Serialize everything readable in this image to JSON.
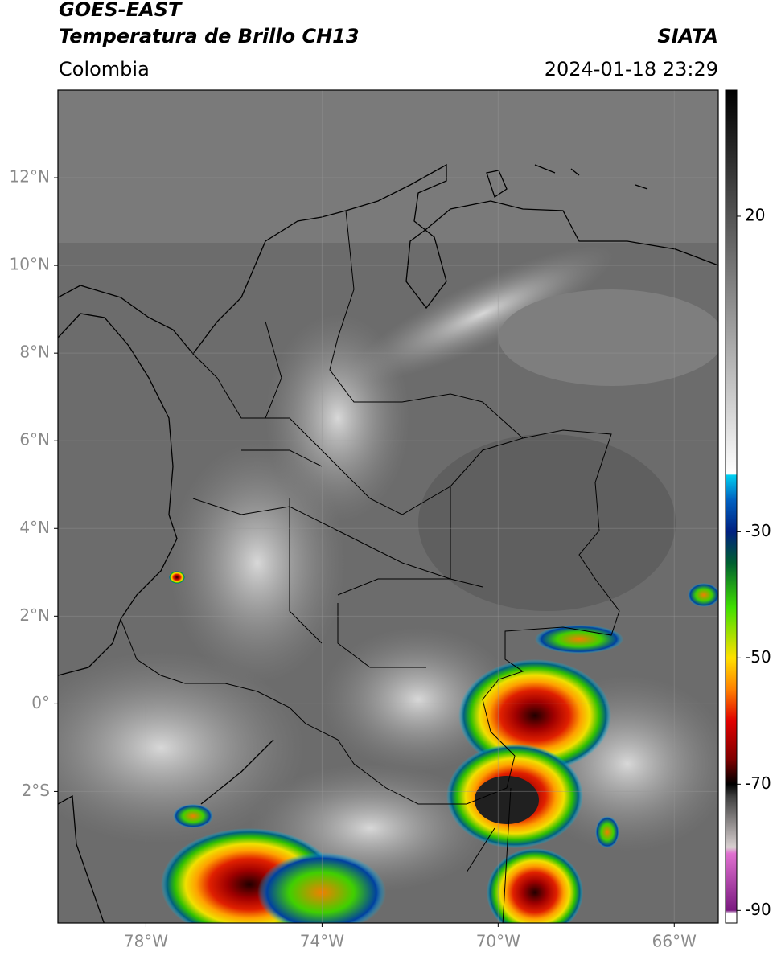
{
  "map": {
    "title": "GOES-EAST",
    "subtitle": "Temperatura de Brillo CH13",
    "source": "SIATA",
    "region": "Colombia",
    "datetime": "2024-01-18 23:29",
    "lonlim": [
      -80,
      -65
    ],
    "latlim": [
      -5,
      14
    ],
    "grid": true,
    "xticks": [
      {
        "value": -78,
        "label": "78°W"
      },
      {
        "value": -74,
        "label": "74°W"
      },
      {
        "value": -70,
        "label": "70°W"
      },
      {
        "value": -66,
        "label": "66°W"
      }
    ],
    "yticks": [
      {
        "value": 12,
        "label": "12°N"
      },
      {
        "value": 10,
        "label": "10°N"
      },
      {
        "value": 8,
        "label": "8°N"
      },
      {
        "value": 6,
        "label": "6°N"
      },
      {
        "value": 4,
        "label": "4°N"
      },
      {
        "value": 2,
        "label": "2°N"
      },
      {
        "value": 0,
        "label": "0°"
      },
      {
        "value": -2,
        "label": "2°S"
      }
    ],
    "colorbar": {
      "clim": [
        -92,
        40
      ],
      "ticks": [
        20,
        -30,
        -50,
        -70,
        -90
      ],
      "colormap": [
        {
          "value": 40,
          "color": "#000000"
        },
        {
          "value": -20.9,
          "color": "#ffffff"
        },
        {
          "value": -21,
          "color": "#00d0f0"
        },
        {
          "value": -25,
          "color": "#0060c0"
        },
        {
          "value": -30,
          "color": "#002080"
        },
        {
          "value": -35,
          "color": "#006030"
        },
        {
          "value": -42,
          "color": "#40e000"
        },
        {
          "value": -50,
          "color": "#ffe000"
        },
        {
          "value": -55,
          "color": "#ff8000"
        },
        {
          "value": -60,
          "color": "#e00000"
        },
        {
          "value": -66,
          "color": "#800000"
        },
        {
          "value": -70,
          "color": "#000000"
        },
        {
          "value": -72,
          "color": "#404040"
        },
        {
          "value": -80,
          "color": "#d8d0d0"
        },
        {
          "value": -81,
          "color": "#e070d0"
        },
        {
          "value": -90,
          "color": "#7a1a80"
        },
        {
          "value": -90.5,
          "color": "#ffffff"
        },
        {
          "value": -92,
          "color": "#ffffff"
        }
      ]
    }
  }
}
